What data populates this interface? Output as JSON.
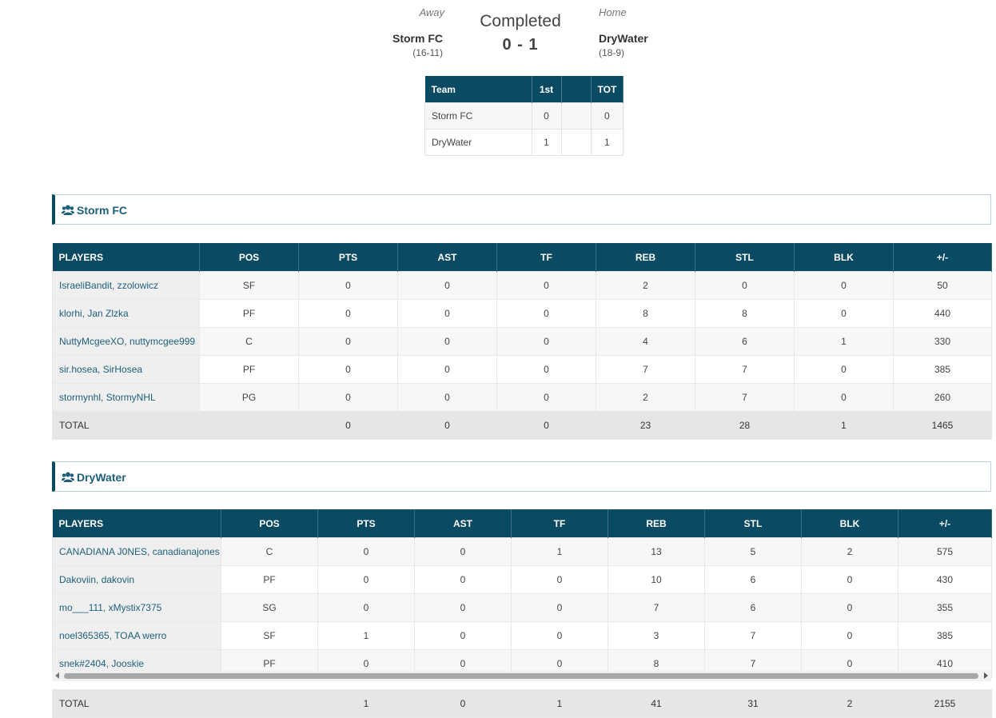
{
  "header": {
    "away_label": "Away",
    "home_label": "Home",
    "status": "Completed",
    "score": "0 - 1",
    "away_team": "Storm FC",
    "away_record": "(16-11)",
    "home_team": "DryWater",
    "home_record": "(18-9)"
  },
  "linescore": {
    "columns": [
      "Team",
      "1st",
      "",
      "TOT"
    ],
    "rows": [
      {
        "team": "Storm FC",
        "p1": "0",
        "p2": "",
        "tot": "0"
      },
      {
        "team": "DryWater",
        "p1": "1",
        "p2": "",
        "tot": "1"
      }
    ]
  },
  "columns": [
    "PLAYERS",
    "POS",
    "PTS",
    "AST",
    "TF",
    "REB",
    "STL",
    "BLK",
    "+/-"
  ],
  "teams": [
    {
      "name": "Storm FC",
      "players": [
        {
          "name": "IsraeliBandit, zzolowicz",
          "pos": "SF",
          "pts": "0",
          "ast": "0",
          "tf": "0",
          "reb": "2",
          "stl": "0",
          "blk": "0",
          "pm": "50"
        },
        {
          "name": "klorhi, Jan Zlzka",
          "pos": "PF",
          "pts": "0",
          "ast": "0",
          "tf": "0",
          "reb": "8",
          "stl": "8",
          "blk": "0",
          "pm": "440"
        },
        {
          "name": "NuttyMcgeeXO, nuttymcgee999",
          "pos": "C",
          "pts": "0",
          "ast": "0",
          "tf": "0",
          "reb": "4",
          "stl": "6",
          "blk": "1",
          "pm": "330"
        },
        {
          "name": "sir.hosea, SirHosea",
          "pos": "PF",
          "pts": "0",
          "ast": "0",
          "tf": "0",
          "reb": "7",
          "stl": "7",
          "blk": "0",
          "pm": "385"
        },
        {
          "name": "stormynhl, StormyNHL",
          "pos": "PG",
          "pts": "0",
          "ast": "0",
          "tf": "0",
          "reb": "2",
          "stl": "7",
          "blk": "0",
          "pm": "260"
        }
      ],
      "total": {
        "label": "TOTAL",
        "pos": "",
        "pts": "0",
        "ast": "0",
        "tf": "0",
        "reb": "23",
        "stl": "28",
        "blk": "1",
        "pm": "1465"
      }
    },
    {
      "name": "DryWater",
      "players": [
        {
          "name": "CANADIANA J0NES, canadianajones",
          "pos": "C",
          "pts": "0",
          "ast": "0",
          "tf": "1",
          "reb": "13",
          "stl": "5",
          "blk": "2",
          "pm": "575"
        },
        {
          "name": "Dakoviin, dakovin",
          "pos": "PF",
          "pts": "0",
          "ast": "0",
          "tf": "0",
          "reb": "10",
          "stl": "6",
          "blk": "0",
          "pm": "430"
        },
        {
          "name": "mo___111, xMystix7375",
          "pos": "SG",
          "pts": "0",
          "ast": "0",
          "tf": "0",
          "reb": "7",
          "stl": "6",
          "blk": "0",
          "pm": "355"
        },
        {
          "name": "noel365365, TOAA werro",
          "pos": "SF",
          "pts": "1",
          "ast": "0",
          "tf": "0",
          "reb": "3",
          "stl": "7",
          "blk": "0",
          "pm": "385"
        },
        {
          "name": "snek#2404, Jooskie",
          "pos": "PF",
          "pts": "0",
          "ast": "0",
          "tf": "0",
          "reb": "8",
          "stl": "7",
          "blk": "0",
          "pm": "410"
        }
      ],
      "total": {
        "label": "TOTAL",
        "pos": "",
        "pts": "1",
        "ast": "0",
        "tf": "1",
        "reb": "41",
        "stl": "31",
        "blk": "2",
        "pm": "2155"
      }
    }
  ],
  "icons": {
    "team_heading": "users-icon"
  },
  "colors": {
    "header_bg": "#0b4a63",
    "accent_text": "#1e5f7a"
  }
}
